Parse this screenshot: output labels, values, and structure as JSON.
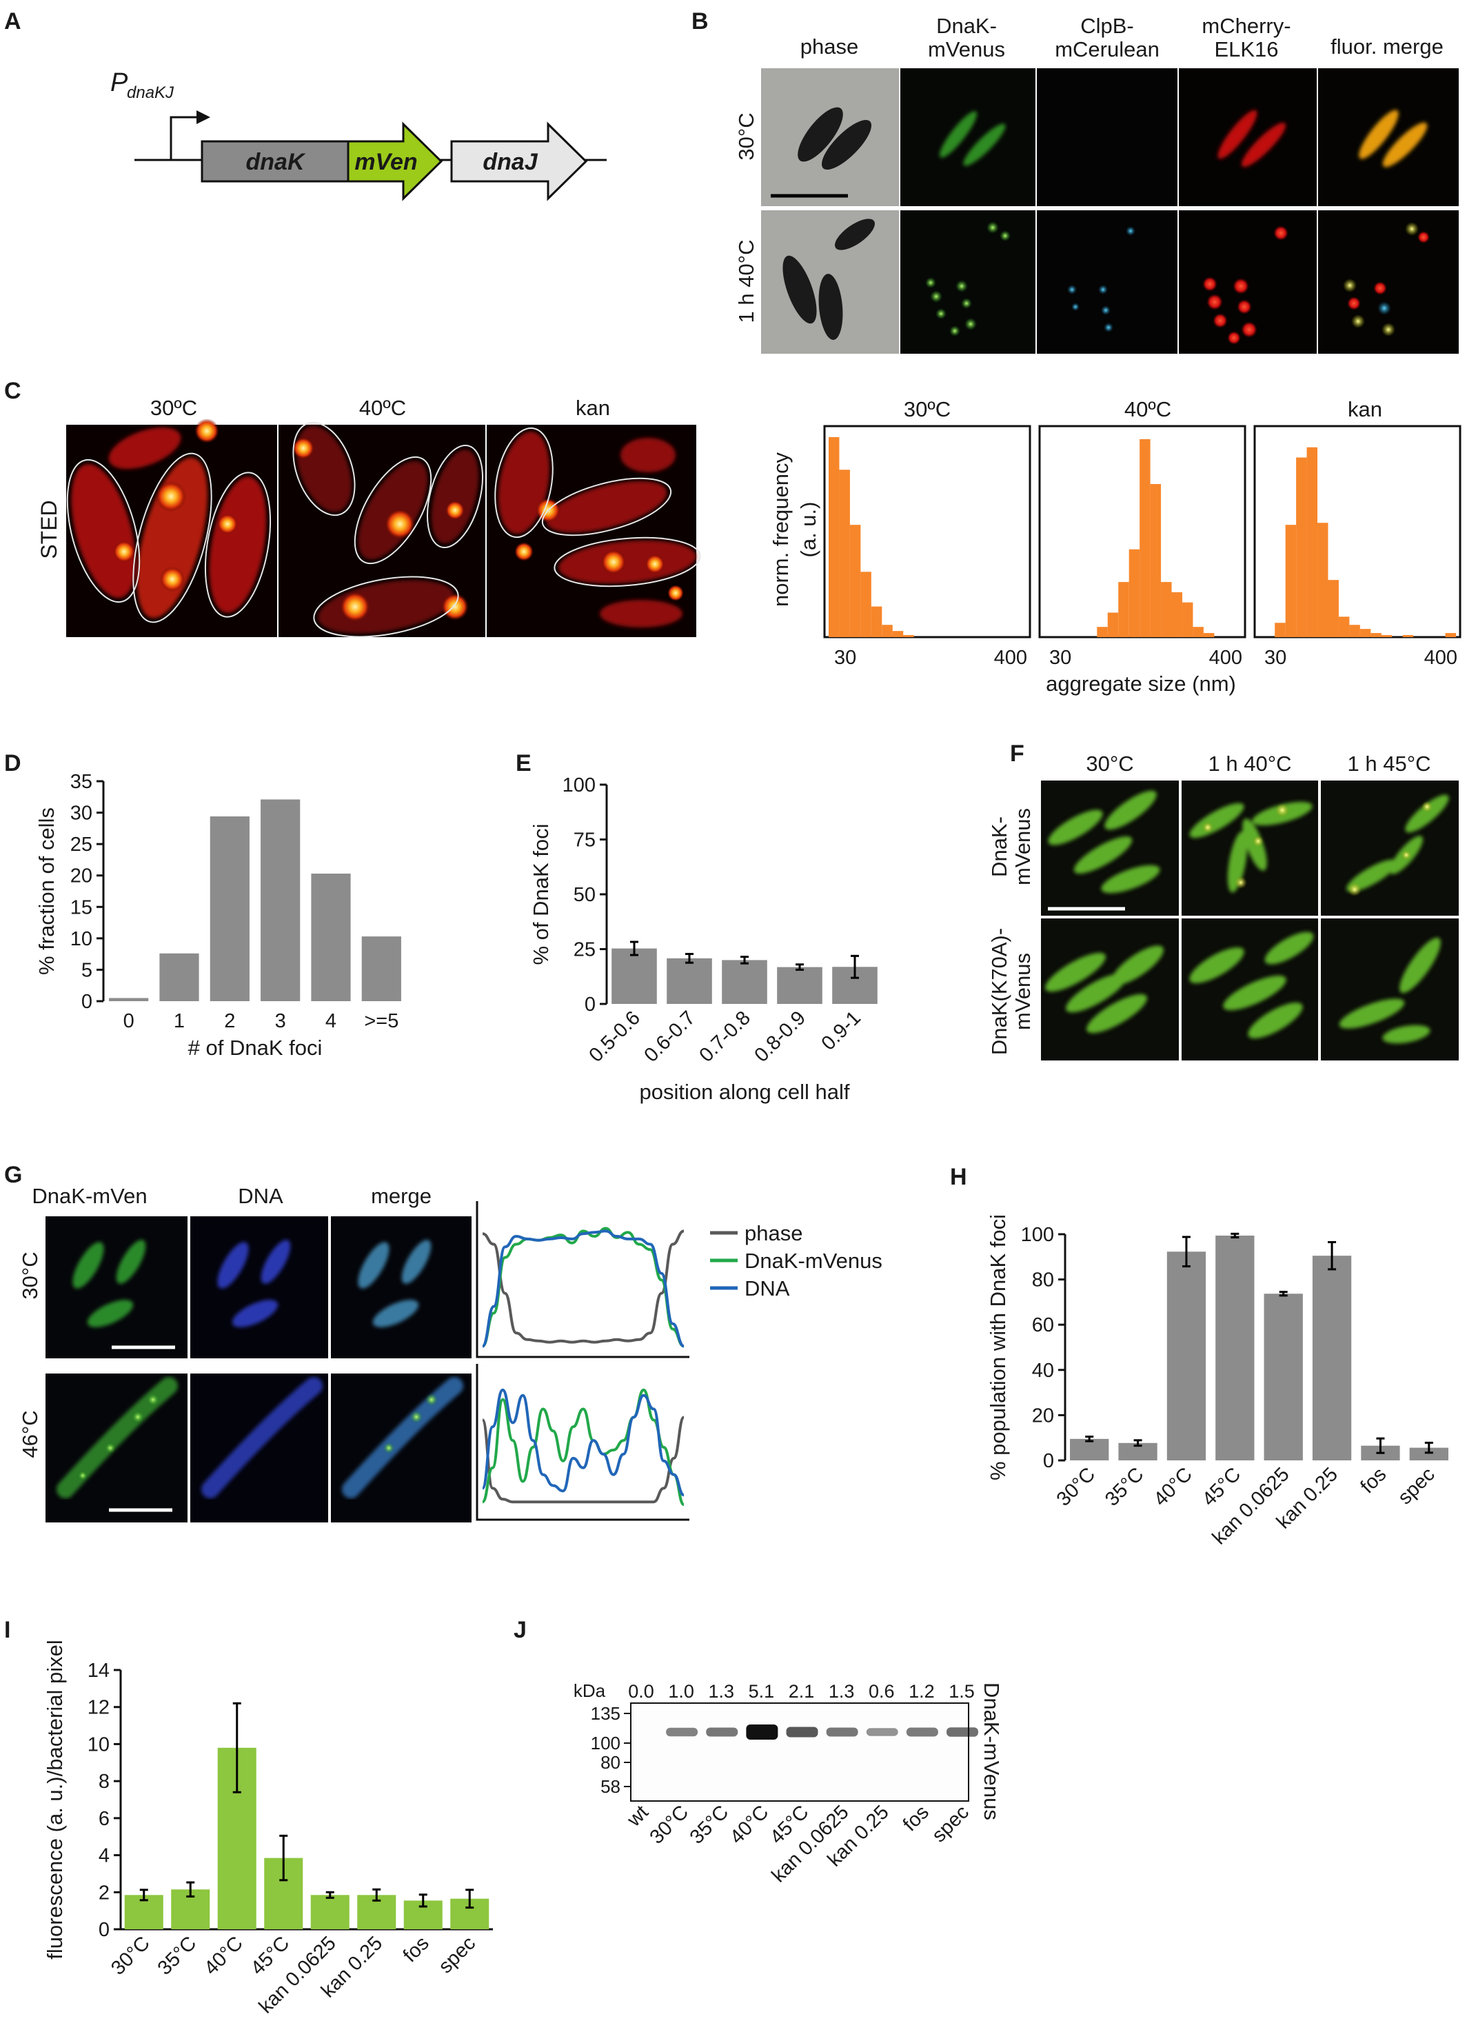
{
  "panels": {
    "A": {
      "letter": "A",
      "promoter": "P",
      "promoter_sub": "dnaKJ",
      "genes": [
        {
          "label": "dnaK",
          "color": "#8a8a8a"
        },
        {
          "label": "mVen",
          "color": "#9ccb1a"
        },
        {
          "label": "dnaJ",
          "color": "#e6e6e6"
        }
      ]
    },
    "B": {
      "letter": "B",
      "columns": [
        "phase",
        "DnaK-mVenus",
        "ClpB-mCerulean",
        "mCherry-ELK16",
        "fluor. merge"
      ],
      "rows": [
        "30°C",
        "1 h 40°C"
      ]
    },
    "C": {
      "letter": "C",
      "row_label": "STED",
      "image_titles": [
        "30ºC",
        "40ºC",
        "kan"
      ],
      "hist_titles": [
        "30ºC",
        "40ºC",
        "kan"
      ],
      "ylabel_line1": "norm. frequency",
      "ylabel_line2": "(a. u.)",
      "xlabel": "aggregate size (nm)",
      "xticks": [
        "30",
        "400"
      ],
      "bar_color": "#f7862a"
    },
    "D": {
      "letter": "D"
    },
    "E": {
      "letter": "E"
    },
    "F": {
      "letter": "F",
      "columns": [
        "30°C",
        "1 h 40°C",
        "1 h 45°C"
      ],
      "rows": [
        "DnaK-mVenus",
        "DnaK(K70A)-mVenus"
      ]
    },
    "G": {
      "letter": "G",
      "columns": [
        "DnaK-mVen",
        "DNA",
        "merge"
      ],
      "rows": [
        "30°C",
        "46°C"
      ],
      "legend": [
        {
          "label": "phase",
          "color": "#595959"
        },
        {
          "label": "DnaK-mVenus",
          "color": "#22a84a"
        },
        {
          "label": "DNA",
          "color": "#2166b8"
        }
      ]
    },
    "H": {
      "letter": "H"
    },
    "I": {
      "letter": "I"
    },
    "J": {
      "letter": "J",
      "kda_label": "kDa",
      "markers": [
        "135",
        "100",
        "80",
        "58"
      ],
      "ratios": [
        "0.0",
        "1.0",
        "1.3",
        "5.1",
        "2.1",
        "1.3",
        "0.6",
        "1.2",
        "1.5"
      ],
      "lanes": [
        "wt",
        "30°C",
        "35°C",
        "40°C",
        "45°C",
        "kan 0.0625",
        "kan 0.25",
        "fos",
        "spec"
      ],
      "band_label": "DnaK-mVenus"
    }
  },
  "chart_data": [
    {
      "panel": "C",
      "type": "bar",
      "title": "30ºC",
      "xlabel": "aggregate size (nm)",
      "ylabel": "norm. frequency (a. u.)",
      "xlim": [
        30,
        400
      ],
      "bin_starts": [
        30,
        50,
        70,
        90,
        110,
        130,
        150,
        170
      ],
      "values": [
        0.98,
        0.82,
        0.55,
        0.32,
        0.15,
        0.06,
        0.03,
        0.01
      ]
    },
    {
      "panel": "C",
      "type": "bar",
      "title": "40ºC",
      "xlabel": "aggregate size (nm)",
      "ylabel": "norm. frequency (a. u.)",
      "xlim": [
        30,
        400
      ],
      "bin_starts": [
        130,
        150,
        170,
        190,
        210,
        230,
        250,
        270,
        290,
        310,
        330
      ],
      "values": [
        0.05,
        0.12,
        0.27,
        0.43,
        0.97,
        0.75,
        0.27,
        0.22,
        0.17,
        0.05,
        0.02
      ]
    },
    {
      "panel": "C",
      "type": "bar",
      "title": "kan",
      "xlabel": "aggregate size (nm)",
      "ylabel": "norm. frequency (a. u.)",
      "xlim": [
        30,
        400
      ],
      "bin_starts": [
        60,
        80,
        100,
        120,
        140,
        160,
        180,
        200,
        220,
        240,
        260,
        300,
        380
      ],
      "values": [
        0.07,
        0.55,
        0.88,
        0.93,
        0.56,
        0.28,
        0.1,
        0.06,
        0.04,
        0.02,
        0.01,
        0.01,
        0.02
      ]
    },
    {
      "panel": "D",
      "type": "bar",
      "categories": [
        "0",
        "1",
        "2",
        "3",
        "4",
        ">=5"
      ],
      "values": [
        0.5,
        7.6,
        29.4,
        32.1,
        20.3,
        10.3
      ],
      "xlabel": "# of DnaK foci",
      "ylabel": "% fraction of cells",
      "ylim": [
        0,
        35
      ],
      "yticks": [
        0,
        5,
        10,
        15,
        20,
        25,
        30,
        35
      ],
      "color": "#8c8c8c"
    },
    {
      "panel": "E",
      "type": "bar",
      "categories": [
        "0.5-0.6",
        "0.6-0.7",
        "0.7-0.8",
        "0.8-0.9",
        "0.9-1"
      ],
      "values": [
        25.3,
        20.8,
        20.0,
        16.8,
        16.9
      ],
      "errors": [
        3.0,
        2.0,
        1.5,
        1.2,
        5.0
      ],
      "xlabel": "position along cell half",
      "ylabel": "% of DnaK foci",
      "ylim": [
        0,
        100
      ],
      "yticks": [
        0,
        25,
        50,
        75,
        100
      ],
      "color": "#8c8c8c"
    },
    {
      "panel": "G",
      "type": "line",
      "row": "30°C",
      "series": [
        {
          "name": "phase",
          "values": [
            0.9,
            0.82,
            0.45,
            0.15,
            0.1,
            0.09,
            0.08,
            0.09,
            0.08,
            0.09,
            0.08,
            0.09,
            0.1,
            0.09,
            0.1,
            0.15,
            0.45,
            0.82,
            0.92
          ]
        },
        {
          "name": "DnaK-mVenus",
          "values": [
            0.05,
            0.3,
            0.72,
            0.82,
            0.86,
            0.85,
            0.87,
            0.89,
            0.83,
            0.92,
            0.88,
            0.94,
            0.87,
            0.91,
            0.82,
            0.78,
            0.55,
            0.18,
            0.05
          ]
        },
        {
          "name": "DNA",
          "values": [
            0.05,
            0.35,
            0.8,
            0.88,
            0.86,
            0.85,
            0.86,
            0.87,
            0.86,
            0.9,
            0.91,
            0.92,
            0.88,
            0.86,
            0.86,
            0.82,
            0.6,
            0.22,
            0.05
          ]
        }
      ]
    },
    {
      "panel": "G",
      "type": "line",
      "row": "46°C",
      "series": [
        {
          "name": "phase",
          "values": [
            0.7,
            0.2,
            0.12,
            0.1,
            0.1,
            0.1,
            0.1,
            0.1,
            0.1,
            0.1,
            0.1,
            0.1,
            0.1,
            0.1,
            0.1,
            0.1,
            0.1,
            0.1,
            0.2,
            0.42,
            0.72
          ]
        },
        {
          "name": "DnaK-mVenus",
          "values": [
            0.1,
            0.35,
            0.85,
            0.55,
            0.25,
            0.5,
            0.78,
            0.62,
            0.4,
            0.65,
            0.78,
            0.55,
            0.45,
            0.48,
            0.55,
            0.72,
            0.92,
            0.7,
            0.5,
            0.3,
            0.08
          ]
        },
        {
          "name": "DNA",
          "values": [
            0.2,
            0.65,
            0.92,
            0.68,
            0.88,
            0.55,
            0.3,
            0.22,
            0.18,
            0.42,
            0.35,
            0.55,
            0.45,
            0.3,
            0.45,
            0.72,
            0.88,
            0.78,
            0.4,
            0.3,
            0.15
          ]
        }
      ]
    },
    {
      "panel": "H",
      "type": "bar",
      "categories": [
        "30°C",
        "35°C",
        "40°C",
        "45°C",
        "kan 0.0625",
        "kan 0.25",
        "fos",
        "spec"
      ],
      "values": [
        9.5,
        7.7,
        92.3,
        99.4,
        73.7,
        90.5,
        6.5,
        5.6
      ],
      "errors": [
        1.0,
        1.2,
        6.5,
        0.8,
        0.8,
        6.0,
        3.2,
        2.2
      ],
      "ylabel": "% population with DnaK foci",
      "ylim": [
        0,
        100
      ],
      "yticks": [
        0,
        20,
        40,
        60,
        80,
        100
      ],
      "color": "#8c8c8c"
    },
    {
      "panel": "I",
      "type": "bar",
      "categories": [
        "30°C",
        "35°C",
        "40°C",
        "45°C",
        "kan 0.0625",
        "kan 0.25",
        "fos",
        "spec"
      ],
      "values": [
        1.85,
        2.15,
        9.8,
        3.85,
        1.85,
        1.85,
        1.55,
        1.65
      ],
      "errors": [
        0.28,
        0.38,
        2.4,
        1.2,
        0.15,
        0.3,
        0.32,
        0.48
      ],
      "ylabel": "fluorescence (a. u.)/bacterial pixel",
      "ylim": [
        0,
        14
      ],
      "yticks": [
        0,
        2,
        4,
        6,
        8,
        10,
        12,
        14
      ],
      "color": "#8dc63f"
    }
  ]
}
